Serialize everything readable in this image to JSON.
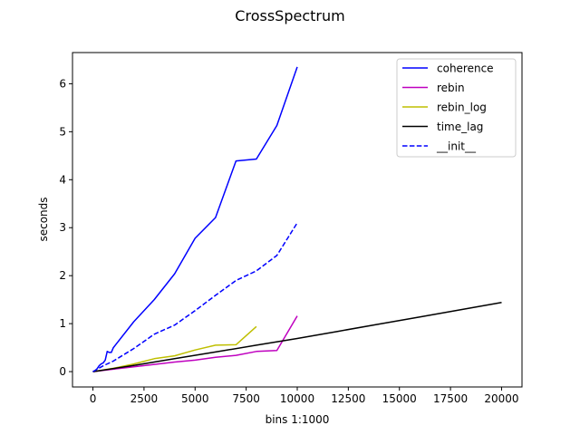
{
  "chart_data": {
    "type": "line",
    "title": "CrossSpectrum",
    "xlabel": "bins 1:1000",
    "ylabel": "seconds",
    "xlim": [
      -1000,
      21000
    ],
    "ylim": [
      -0.32,
      6.65
    ],
    "xticks": [
      0,
      2500,
      5000,
      7500,
      10000,
      12500,
      15000,
      17500,
      20000
    ],
    "yticks": [
      0,
      1,
      2,
      3,
      4,
      5,
      6
    ],
    "grid": false,
    "legend_position": "top-right",
    "series": [
      {
        "name": "coherence",
        "color": "#0000ff",
        "dash": "solid",
        "x": [
          0,
          100,
          200,
          300,
          400,
          500,
          600,
          700,
          800,
          900,
          1000,
          2000,
          3000,
          4000,
          5000,
          6000,
          7000,
          8000,
          9000,
          10000
        ],
        "y": [
          0,
          0.02,
          0.06,
          0.12,
          0.16,
          0.18,
          0.24,
          0.42,
          0.4,
          0.4,
          0.5,
          1.04,
          1.5,
          2.04,
          2.78,
          3.21,
          4.39,
          4.43,
          5.13,
          6.35
        ]
      },
      {
        "name": "rebin",
        "color": "#bf00bf",
        "dash": "solid",
        "x": [
          0,
          1000,
          2000,
          3000,
          4000,
          5000,
          6000,
          7000,
          8000,
          9000,
          10000
        ],
        "y": [
          0,
          0.05,
          0.1,
          0.15,
          0.2,
          0.24,
          0.3,
          0.34,
          0.42,
          0.44,
          1.16
        ]
      },
      {
        "name": "rebin_log",
        "color": "#bfbf00",
        "dash": "solid",
        "x": [
          0,
          1000,
          2000,
          3000,
          4000,
          5000,
          6000,
          7000,
          8000
        ],
        "y": [
          0,
          0.07,
          0.16,
          0.27,
          0.33,
          0.45,
          0.55,
          0.56,
          0.94
        ]
      },
      {
        "name": "time_lag",
        "color": "#000000",
        "dash": "solid",
        "x": [
          0,
          2000,
          4000,
          6000,
          8000,
          10000,
          12000,
          14000,
          16000,
          18000,
          20000
        ],
        "y": [
          0,
          0.13,
          0.27,
          0.41,
          0.55,
          0.69,
          0.84,
          0.99,
          1.14,
          1.29,
          1.44
        ]
      },
      {
        "name": "__init__",
        "color": "#0000ff",
        "dash": "dashed",
        "x": [
          0,
          500,
          1000,
          2000,
          3000,
          4000,
          5000,
          6000,
          7000,
          8000,
          9000,
          10000
        ],
        "y": [
          0,
          0.12,
          0.22,
          0.48,
          0.78,
          0.97,
          1.27,
          1.59,
          1.9,
          2.1,
          2.42,
          3.1
        ]
      }
    ]
  }
}
